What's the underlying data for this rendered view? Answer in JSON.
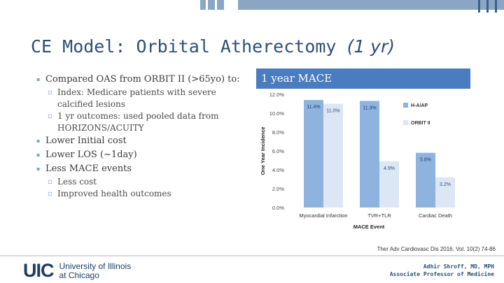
{
  "slide": {
    "title_main": "CE Model: Orbital Atherectomy",
    "title_italic": "(1 yr)"
  },
  "bullets": {
    "b1": "Compared OAS from ORBIT II (>65yo) to:",
    "b1_sub1_line1": "Index: Medicare patients with severe",
    "b1_sub1_line2": "calcified lesions",
    "b1_sub2_line1": "1 yr outcomes: used pooled data from",
    "b1_sub2_line2": "HORIZONS/ACUITY",
    "b2": "Lower Initial cost",
    "b3": "Lower LOS (~1day)",
    "b4": "Less MACE events",
    "b4_sub1": "Less cost",
    "b4_sub2": "Improved health outcomes"
  },
  "chart_header": "1 year MACE",
  "chart_data": {
    "type": "bar",
    "categories": [
      "Myocardial Infarction",
      "TVR+TLR",
      "Cardiac Death"
    ],
    "series": [
      {
        "name": "H-A/AP",
        "values": [
          11.4,
          11.3,
          5.8
        ],
        "labels": [
          "11.4%",
          "11.3%",
          "5.8%"
        ],
        "color": "#8fb3df"
      },
      {
        "name": "ORBIT II",
        "values": [
          11.0,
          4.9,
          3.2
        ],
        "labels": [
          "11.0%",
          "4.9%",
          "3.2%"
        ],
        "color": "#dbe7f5"
      }
    ],
    "xlabel": "MACE Event",
    "ylabel": "One Year Incidence",
    "ylim": [
      0,
      12
    ],
    "yticks": [
      "0.0%",
      "2.0%",
      "4.0%",
      "6.0%",
      "8.0%",
      "10.0%",
      "12.0%"
    ],
    "grid": false,
    "legend": "right"
  },
  "citation": "Ther Adv Cardiovasc Dis 2016, Vol. 10(2) 74-86",
  "footer": {
    "logo_mark": "UIC",
    "logo_line1": "University of Illinois",
    "logo_line2": "at Chicago",
    "author_name": "Adhir Shroff, MD, MPH",
    "author_title": "Associate Professor of Medicine"
  }
}
